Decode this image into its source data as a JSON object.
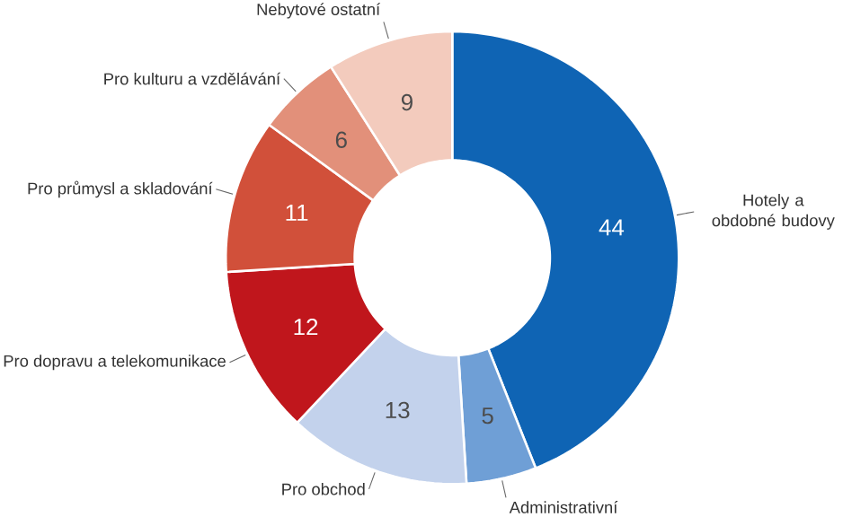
{
  "chart_data": {
    "type": "donut",
    "categories": [
      "Hotely a obdobné budovy",
      "Administrativní",
      "Pro obchod",
      "Pro dopravu a telekomunikace",
      "Pro průmysl a skladování",
      "Pro kulturu a vzdělávání",
      "Nebytové ostatní"
    ],
    "values": [
      44,
      5,
      13,
      12,
      11,
      6,
      9
    ],
    "colors": [
      "#0f64b4",
      "#6f9fd6",
      "#c3d2ec",
      "#c0161c",
      "#d1503a",
      "#e2907a",
      "#f3cbbd"
    ],
    "data_labels": true
  }
}
